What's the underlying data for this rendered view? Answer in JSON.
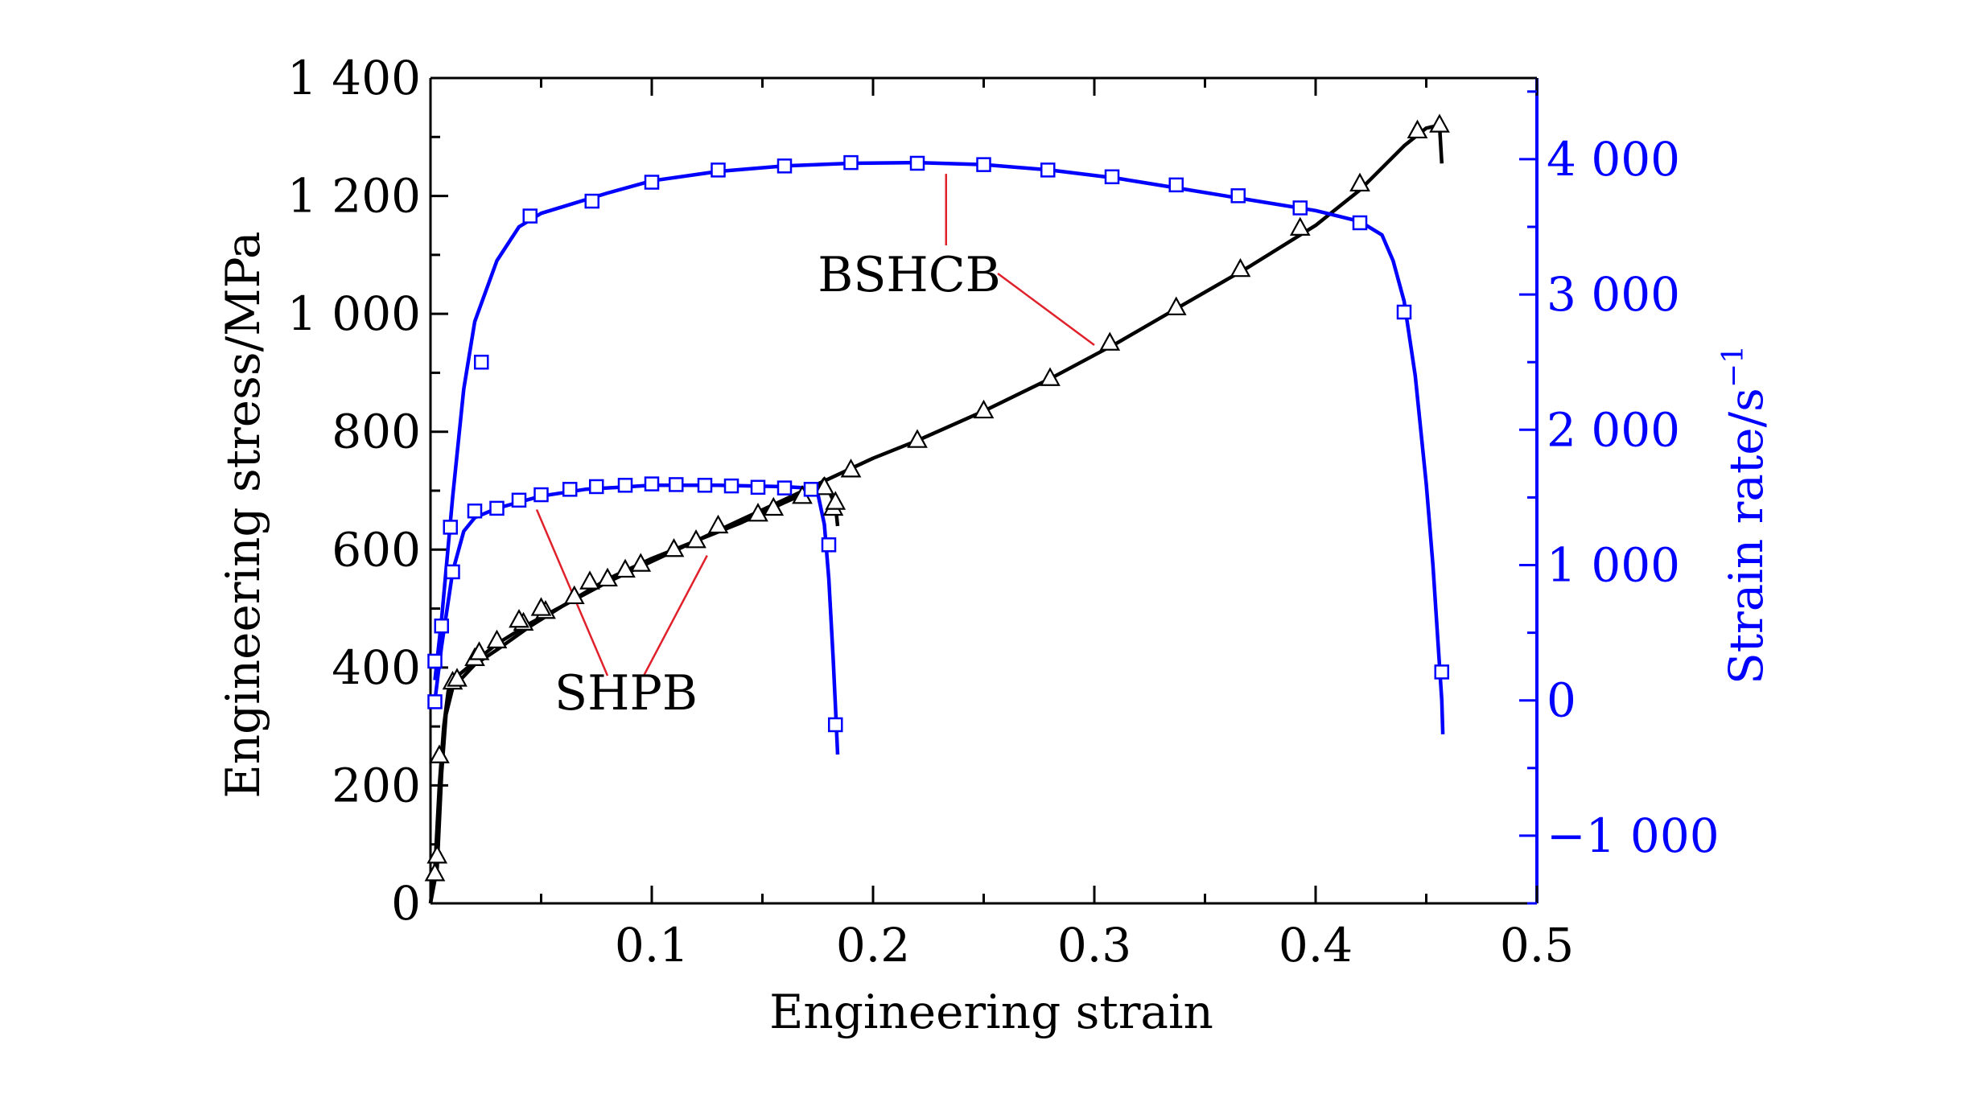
{
  "chart_data": {
    "type": "line",
    "xlabel": "Engineering strain",
    "ylabel_left": "Engineering stress/MPa",
    "ylabel_right": "Strain rate/s",
    "ylabel_right_sup": "−1",
    "xlim": [
      0,
      0.5
    ],
    "ylim_left": [
      0,
      1400
    ],
    "ylim_right": [
      -1500,
      4600
    ],
    "x_ticks": [
      0.1,
      0.2,
      0.3,
      0.4,
      0.5
    ],
    "x_tick_labels": [
      "0.1",
      "0.2",
      "0.3",
      "0.4",
      "0.5"
    ],
    "y_left_ticks": [
      0,
      200,
      400,
      600,
      800,
      1000,
      1200,
      1400
    ],
    "y_left_tick_labels": [
      "0",
      "200",
      "400",
      "600",
      "800",
      "1 000",
      "1 200",
      "1 400"
    ],
    "y_right_ticks": [
      -1000,
      0,
      1000,
      2000,
      3000,
      4000
    ],
    "y_right_tick_labels": [
      "−1 000",
      "0",
      "1 000",
      "2 000",
      "3 000",
      "4 000"
    ],
    "annotations": [
      {
        "text": "BSHCB",
        "x": 0.215,
        "y": 1070
      },
      {
        "text": "SHPB",
        "x": 0.06,
        "y": 360
      }
    ],
    "series": [
      {
        "axis": "left",
        "color": "#000000",
        "marker": "triangle",
        "curve": [
          [
            0,
            0
          ],
          [
            0.002,
            60
          ],
          [
            0.004,
            200
          ],
          [
            0.006,
            300
          ],
          [
            0.008,
            360
          ],
          [
            0.012,
            385
          ],
          [
            0.02,
            410
          ],
          [
            0.03,
            440
          ],
          [
            0.045,
            475
          ],
          [
            0.06,
            505
          ],
          [
            0.08,
            545
          ],
          [
            0.1,
            580
          ],
          [
            0.12,
            615
          ],
          [
            0.14,
            650
          ],
          [
            0.16,
            685
          ],
          [
            0.18,
            720
          ],
          [
            0.2,
            755
          ],
          [
            0.22,
            785
          ],
          [
            0.25,
            835
          ],
          [
            0.28,
            890
          ],
          [
            0.31,
            950
          ],
          [
            0.34,
            1015
          ],
          [
            0.37,
            1080
          ],
          [
            0.4,
            1150
          ],
          [
            0.42,
            1210
          ],
          [
            0.44,
            1285
          ],
          [
            0.45,
            1315
          ],
          [
            0.456,
            1320
          ],
          [
            0.457,
            1255
          ]
        ],
        "markers": [
          [
            0.002,
            50
          ],
          [
            0.003,
            80
          ],
          [
            0.004,
            250
          ],
          [
            0.01,
            375
          ],
          [
            0.02,
            415
          ],
          [
            0.03,
            445
          ],
          [
            0.042,
            475
          ],
          [
            0.052,
            495
          ],
          [
            0.072,
            545
          ],
          [
            0.088,
            565
          ],
          [
            0.11,
            600
          ],
          [
            0.13,
            640
          ],
          [
            0.155,
            670
          ],
          [
            0.178,
            705
          ],
          [
            0.19,
            735
          ],
          [
            0.22,
            785
          ],
          [
            0.25,
            835
          ],
          [
            0.28,
            890
          ],
          [
            0.307,
            950
          ],
          [
            0.337,
            1010
          ],
          [
            0.366,
            1075
          ],
          [
            0.393,
            1145
          ],
          [
            0.42,
            1220
          ],
          [
            0.446,
            1310
          ],
          [
            0.456,
            1320
          ]
        ]
      },
      {
        "axis": "left",
        "color": "#000000",
        "marker": "triangle",
        "curve": [
          [
            0,
            0
          ],
          [
            0.003,
            60
          ],
          [
            0.005,
            220
          ],
          [
            0.007,
            320
          ],
          [
            0.01,
            365
          ],
          [
            0.02,
            405
          ],
          [
            0.03,
            430
          ],
          [
            0.045,
            470
          ],
          [
            0.06,
            505
          ],
          [
            0.08,
            550
          ],
          [
            0.1,
            585
          ],
          [
            0.12,
            615
          ],
          [
            0.14,
            645
          ],
          [
            0.16,
            680
          ],
          [
            0.175,
            705
          ],
          [
            0.178,
            720
          ],
          [
            0.18,
            700
          ],
          [
            0.183,
            675
          ],
          [
            0.184,
            640
          ]
        ],
        "markers": [
          [
            0.012,
            380
          ],
          [
            0.022,
            425
          ],
          [
            0.04,
            480
          ],
          [
            0.05,
            500
          ],
          [
            0.065,
            520
          ],
          [
            0.08,
            550
          ],
          [
            0.095,
            575
          ],
          [
            0.12,
            615
          ],
          [
            0.148,
            660
          ],
          [
            0.168,
            690
          ],
          [
            0.182,
            670
          ],
          [
            0.183,
            680
          ]
        ]
      },
      {
        "axis": "right",
        "color": "#0000ff",
        "marker": "square",
        "curve": [
          [
            0.002,
            150
          ],
          [
            0.005,
            600
          ],
          [
            0.01,
            1500
          ],
          [
            0.015,
            2300
          ],
          [
            0.02,
            2800
          ],
          [
            0.03,
            3250
          ],
          [
            0.04,
            3500
          ],
          [
            0.05,
            3600
          ],
          [
            0.06,
            3650
          ],
          [
            0.08,
            3750
          ],
          [
            0.1,
            3840
          ],
          [
            0.13,
            3910
          ],
          [
            0.16,
            3950
          ],
          [
            0.19,
            3970
          ],
          [
            0.22,
            3975
          ],
          [
            0.25,
            3960
          ],
          [
            0.28,
            3920
          ],
          [
            0.31,
            3860
          ],
          [
            0.34,
            3780
          ],
          [
            0.37,
            3700
          ],
          [
            0.4,
            3620
          ],
          [
            0.42,
            3540
          ],
          [
            0.43,
            3440
          ],
          [
            0.435,
            3250
          ],
          [
            0.44,
            2950
          ],
          [
            0.445,
            2400
          ],
          [
            0.45,
            1600
          ],
          [
            0.453,
            1000
          ],
          [
            0.455,
            500
          ],
          [
            0.457,
            0
          ],
          [
            0.4575,
            -250
          ]
        ],
        "markers": [
          [
            0.002,
            290
          ],
          [
            0.005,
            550
          ],
          [
            0.023,
            2500
          ],
          [
            0.045,
            3580
          ],
          [
            0.073,
            3690
          ],
          [
            0.1,
            3830
          ],
          [
            0.13,
            3920
          ],
          [
            0.16,
            3950
          ],
          [
            0.19,
            3975
          ],
          [
            0.22,
            3970
          ],
          [
            0.25,
            3960
          ],
          [
            0.279,
            3920
          ],
          [
            0.308,
            3870
          ],
          [
            0.337,
            3810
          ],
          [
            0.365,
            3730
          ],
          [
            0.393,
            3640
          ],
          [
            0.42,
            3530
          ],
          [
            0.44,
            2870
          ],
          [
            0.457,
            210
          ]
        ]
      },
      {
        "axis": "right",
        "color": "#0000ff",
        "marker": "square",
        "curve": [
          [
            0.002,
            0
          ],
          [
            0.005,
            400
          ],
          [
            0.01,
            950
          ],
          [
            0.015,
            1250
          ],
          [
            0.02,
            1350
          ],
          [
            0.03,
            1420
          ],
          [
            0.05,
            1510
          ],
          [
            0.07,
            1560
          ],
          [
            0.1,
            1590
          ],
          [
            0.13,
            1590
          ],
          [
            0.16,
            1580
          ],
          [
            0.17,
            1570
          ],
          [
            0.175,
            1530
          ],
          [
            0.178,
            1300
          ],
          [
            0.18,
            900
          ],
          [
            0.182,
            300
          ],
          [
            0.183,
            -50
          ],
          [
            0.184,
            -400
          ]
        ],
        "markers": [
          [
            0.002,
            -10
          ],
          [
            0.009,
            1280
          ],
          [
            0.01,
            950
          ],
          [
            0.02,
            1400
          ],
          [
            0.03,
            1420
          ],
          [
            0.04,
            1480
          ],
          [
            0.05,
            1520
          ],
          [
            0.063,
            1560
          ],
          [
            0.075,
            1580
          ],
          [
            0.088,
            1590
          ],
          [
            0.1,
            1600
          ],
          [
            0.111,
            1595
          ],
          [
            0.124,
            1590
          ],
          [
            0.136,
            1585
          ],
          [
            0.148,
            1575
          ],
          [
            0.16,
            1570
          ],
          [
            0.172,
            1560
          ],
          [
            0.18,
            1150
          ],
          [
            0.183,
            -180
          ]
        ]
      }
    ]
  }
}
